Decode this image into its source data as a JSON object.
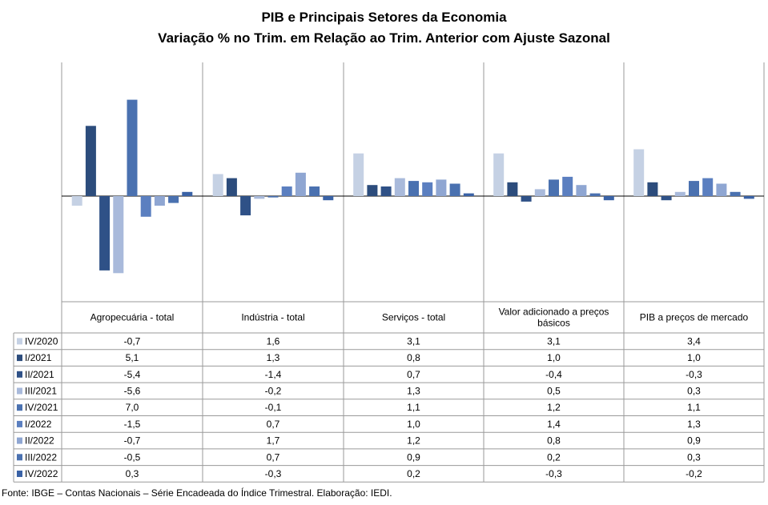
{
  "chart_data": {
    "type": "bar",
    "title": "PIB e Principais  Setores da Economia",
    "subtitle": "Variação % no Trim. em Relação ao Trim. Anterior com Ajuste Sazonal",
    "categories": [
      "Agropecuária - total",
      "Indústria - total",
      "Serviços - total",
      "Valor adicionado a preços básicos",
      "PIB a preços de mercado"
    ],
    "series": [
      {
        "name": "IV/2020",
        "color": "#c5d1e4",
        "values": [
          -0.7,
          1.6,
          3.1,
          3.1,
          3.4
        ],
        "labels": [
          "-0,7",
          "1,6",
          "3,1",
          "3,1",
          "3,4"
        ]
      },
      {
        "name": "I/2021",
        "color": "#2c4c7c",
        "values": [
          5.1,
          1.3,
          0.8,
          1.0,
          1.0
        ],
        "labels": [
          "5,1",
          "1,3",
          "0,8",
          "1,0",
          "1,0"
        ]
      },
      {
        "name": "II/2021",
        "color": "#2f5187",
        "values": [
          -5.4,
          -1.4,
          0.7,
          -0.4,
          -0.3
        ],
        "labels": [
          "-5,4",
          "-1,4",
          "0,7",
          "-0,4",
          "-0,3"
        ]
      },
      {
        "name": "III/2021",
        "color": "#a9badb",
        "values": [
          -5.6,
          -0.2,
          1.3,
          0.5,
          0.3
        ],
        "labels": [
          "-5,6",
          "-0,2",
          "1,3",
          "0,5",
          "0,3"
        ]
      },
      {
        "name": "IV/2021",
        "color": "#4a71b0",
        "values": [
          7.0,
          -0.1,
          1.1,
          1.2,
          1.1
        ],
        "labels": [
          "7,0",
          "-0,1",
          "1,1",
          "1,2",
          "1,1"
        ]
      },
      {
        "name": "I/2022",
        "color": "#5b7fc0",
        "values": [
          -1.5,
          0.7,
          1.0,
          1.4,
          1.3
        ],
        "labels": [
          "-1,5",
          "0,7",
          "1,0",
          "1,4",
          "1,3"
        ]
      },
      {
        "name": "II/2022",
        "color": "#8fa6d2",
        "values": [
          -0.7,
          1.7,
          1.2,
          0.8,
          0.9
        ],
        "labels": [
          "-0,7",
          "1,7",
          "1,2",
          "0,8",
          "0,9"
        ]
      },
      {
        "name": "III/2022",
        "color": "#4a71b0",
        "values": [
          -0.5,
          0.7,
          0.9,
          0.2,
          0.3
        ],
        "labels": [
          "-0,5",
          "0,7",
          "0,9",
          "0,2",
          "0,3"
        ]
      },
      {
        "name": "IV/2022",
        "color": "#3a62a6",
        "values": [
          0.3,
          -0.3,
          0.2,
          -0.3,
          -0.2
        ],
        "labels": [
          "0,3",
          "-0,3",
          "0,2",
          "-0,3",
          "-0,2"
        ]
      }
    ],
    "ylim": [
      -5.8,
      7.2
    ],
    "grid": false,
    "legend": "data table below chart"
  },
  "source": "Fonte: IBGE – Contas Nacionais – Série Encadeada do Índice Trimestral. Elaboração: IEDI."
}
